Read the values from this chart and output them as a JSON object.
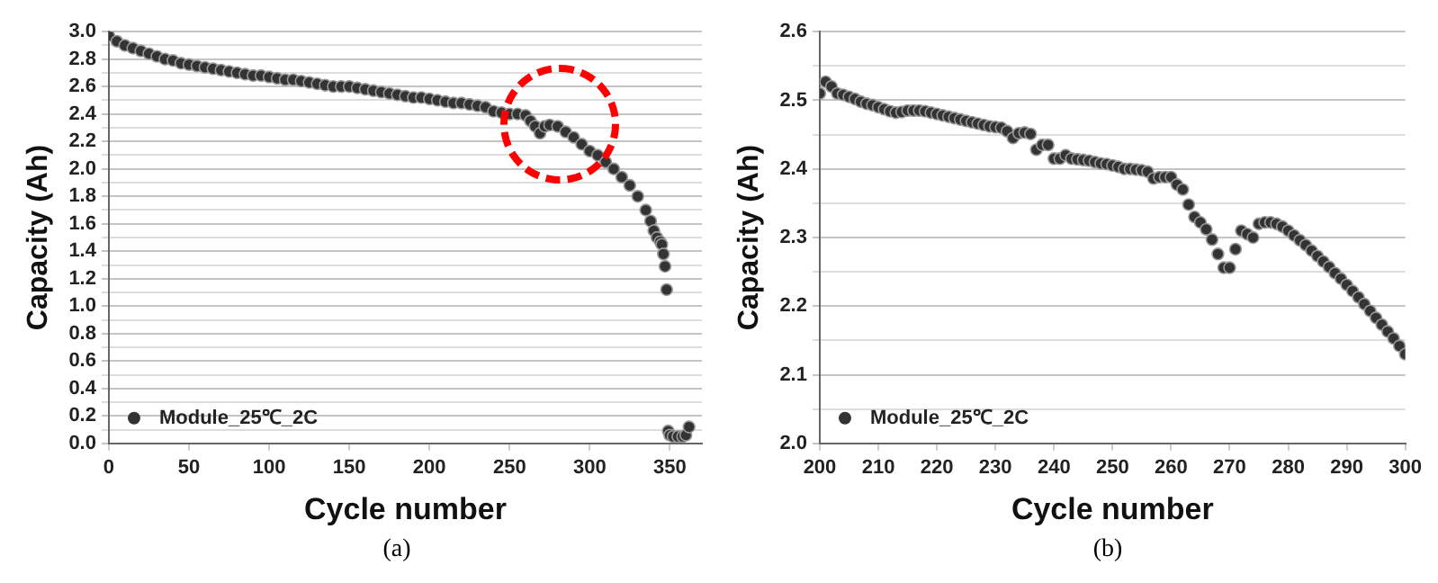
{
  "chart_data": [
    {
      "type": "scatter",
      "xlabel": "Cycle number",
      "ylabel": "Capacity (Ah)",
      "annotations": [
        "(a)"
      ],
      "marker": "circle",
      "grid": "y",
      "legend": "bottom left",
      "xlim": [
        0,
        370
      ],
      "xticks": [
        0,
        50,
        100,
        150,
        200,
        250,
        300,
        350
      ],
      "ylim": [
        0,
        3.0
      ],
      "yticks": [
        {
          "value": 0,
          "label": "0.0"
        },
        {
          "value": 0.1,
          "label": null
        },
        {
          "value": 0.2,
          "label": "0.2"
        },
        {
          "value": 0.3,
          "label": null
        },
        {
          "value": 0.4,
          "label": "0.4"
        },
        {
          "value": 0.5,
          "label": null
        },
        {
          "value": 0.6,
          "label": "0.6"
        },
        {
          "value": 0.7,
          "label": null
        },
        {
          "value": 0.8,
          "label": "0.8"
        },
        {
          "value": 0.9,
          "label": null
        },
        {
          "value": 1,
          "label": "1.0"
        },
        {
          "value": 1.1,
          "label": null
        },
        {
          "value": 1.2,
          "label": "1.2"
        },
        {
          "value": 1.3,
          "label": null
        },
        {
          "value": 1.4,
          "label": "1.4"
        },
        {
          "value": 1.5,
          "label": null
        },
        {
          "value": 1.6,
          "label": "1.6"
        },
        {
          "value": 1.7,
          "label": null
        },
        {
          "value": 1.8,
          "label": "1.8"
        },
        {
          "value": 1.9,
          "label": null
        },
        {
          "value": 2,
          "label": "2.0"
        },
        {
          "value": 2.1,
          "label": null
        },
        {
          "value": 2.2,
          "label": "2.2"
        },
        {
          "value": 2.3,
          "label": null
        },
        {
          "value": 2.4,
          "label": "2.4"
        },
        {
          "value": 2.5,
          "label": null
        },
        {
          "value": 2.6,
          "label": "2.6"
        },
        {
          "value": 2.7,
          "label": null
        },
        {
          "value": 2.8,
          "label": "2.8"
        },
        {
          "value": 2.9,
          "label": null
        },
        {
          "value": 3,
          "label": "3.0"
        }
      ],
      "series": [
        {
          "name": "Module_25℃_2C",
          "color": "#333333",
          "x": [
            0,
            5,
            10,
            15,
            20,
            25,
            30,
            35,
            40,
            45,
            50,
            55,
            60,
            65,
            70,
            75,
            80,
            85,
            90,
            95,
            100,
            105,
            110,
            115,
            120,
            125,
            130,
            135,
            140,
            145,
            150,
            155,
            160,
            165,
            170,
            175,
            180,
            185,
            190,
            195,
            200,
            205,
            210,
            215,
            220,
            225,
            230,
            235,
            240,
            245,
            250,
            255,
            260,
            263,
            266,
            269,
            272,
            275,
            280,
            285,
            290,
            295,
            300,
            305,
            310,
            315,
            320,
            325,
            330,
            335,
            338,
            340,
            342,
            344,
            345,
            346,
            347,
            348,
            349,
            350,
            352,
            355,
            358,
            360,
            362
          ],
          "values": [
            2.97,
            2.93,
            2.9,
            2.88,
            2.86,
            2.84,
            2.82,
            2.8,
            2.79,
            2.77,
            2.76,
            2.75,
            2.74,
            2.73,
            2.72,
            2.71,
            2.7,
            2.69,
            2.68,
            2.68,
            2.67,
            2.66,
            2.65,
            2.65,
            2.64,
            2.63,
            2.62,
            2.61,
            2.6,
            2.6,
            2.6,
            2.59,
            2.58,
            2.57,
            2.56,
            2.55,
            2.54,
            2.53,
            2.52,
            2.52,
            2.51,
            2.5,
            2.49,
            2.48,
            2.48,
            2.47,
            2.46,
            2.45,
            2.42,
            2.41,
            2.4,
            2.4,
            2.39,
            2.35,
            2.31,
            2.26,
            2.31,
            2.32,
            2.31,
            2.27,
            2.23,
            2.18,
            2.13,
            2.1,
            2.05,
            2,
            1.94,
            1.88,
            1.8,
            1.7,
            1.62,
            1.55,
            1.5,
            1.47,
            1.45,
            1.38,
            1.29,
            1.12,
            0.09,
            0.06,
            0.05,
            0.05,
            0.05,
            0.06,
            0.12
          ]
        }
      ]
    },
    {
      "type": "scatter",
      "xlabel": "Cycle number",
      "ylabel": "Capacity (Ah)",
      "annotations": [
        "(b)"
      ],
      "marker": "circle",
      "grid": "y",
      "legend": "bottom left",
      "xlim": [
        200,
        300
      ],
      "xticks": [
        200,
        210,
        220,
        230,
        240,
        250,
        260,
        270,
        280,
        290,
        300
      ],
      "ylim": [
        2.0,
        2.6
      ],
      "yticks": [
        {
          "value": 2,
          "label": "2.0"
        },
        {
          "value": 2.05,
          "label": null
        },
        {
          "value": 2.1,
          "label": "2.1"
        },
        {
          "value": 2.15,
          "label": null
        },
        {
          "value": 2.2,
          "label": "2.2"
        },
        {
          "value": 2.25,
          "label": null
        },
        {
          "value": 2.3,
          "label": "2.3"
        },
        {
          "value": 2.35,
          "label": null
        },
        {
          "value": 2.4,
          "label": "2.4"
        },
        {
          "value": 2.45,
          "label": null
        },
        {
          "value": 2.5,
          "label": "2.5"
        },
        {
          "value": 2.55,
          "label": null
        },
        {
          "value": 2.6,
          "label": "2.6"
        }
      ],
      "series": [
        {
          "name": "Module_25℃_2C",
          "color": "#333333",
          "x": [
            200,
            201,
            202,
            203,
            204,
            205,
            206,
            207,
            208,
            209,
            210,
            211,
            212,
            213,
            214,
            215,
            216,
            217,
            218,
            219,
            220,
            221,
            222,
            223,
            224,
            225,
            226,
            227,
            228,
            229,
            230,
            231,
            232,
            233,
            234,
            235,
            236,
            237,
            238,
            239,
            240,
            241,
            242,
            243,
            244,
            245,
            246,
            247,
            248,
            249,
            250,
            251,
            252,
            253,
            254,
            255,
            256,
            257,
            258,
            259,
            260,
            261,
            262,
            263,
            264,
            265,
            266,
            267,
            268,
            269,
            270,
            271,
            272,
            273,
            274,
            275,
            276,
            277,
            278,
            279,
            280,
            281,
            282,
            283,
            284,
            285,
            286,
            287,
            288,
            289,
            290,
            291,
            292,
            293,
            294,
            295,
            296,
            297,
            298,
            299,
            300
          ],
          "values": [
            2.51,
            2.527,
            2.52,
            2.51,
            2.508,
            2.505,
            2.502,
            2.498,
            2.495,
            2.493,
            2.49,
            2.487,
            2.484,
            2.482,
            2.483,
            2.485,
            2.485,
            2.485,
            2.484,
            2.482,
            2.48,
            2.478,
            2.476,
            2.474,
            2.472,
            2.47,
            2.468,
            2.466,
            2.464,
            2.462,
            2.461,
            2.46,
            2.455,
            2.445,
            2.452,
            2.453,
            2.451,
            2.428,
            2.435,
            2.435,
            2.415,
            2.415,
            2.42,
            2.415,
            2.414,
            2.413,
            2.412,
            2.41,
            2.408,
            2.407,
            2.405,
            2.403,
            2.4,
            2.4,
            2.399,
            2.398,
            2.396,
            2.386,
            2.388,
            2.388,
            2.388,
            2.377,
            2.37,
            2.348,
            2.33,
            2.322,
            2.312,
            2.297,
            2.276,
            2.256,
            2.256,
            2.283,
            2.31,
            2.305,
            2.3,
            2.32,
            2.322,
            2.322,
            2.32,
            2.316,
            2.31,
            2.303,
            2.296,
            2.289,
            2.281,
            2.273,
            2.265,
            2.257,
            2.248,
            2.24,
            2.231,
            2.222,
            2.213,
            2.203,
            2.193,
            2.183,
            2.173,
            2.163,
            2.153,
            2.142,
            2.13
          ]
        }
      ]
    }
  ]
}
